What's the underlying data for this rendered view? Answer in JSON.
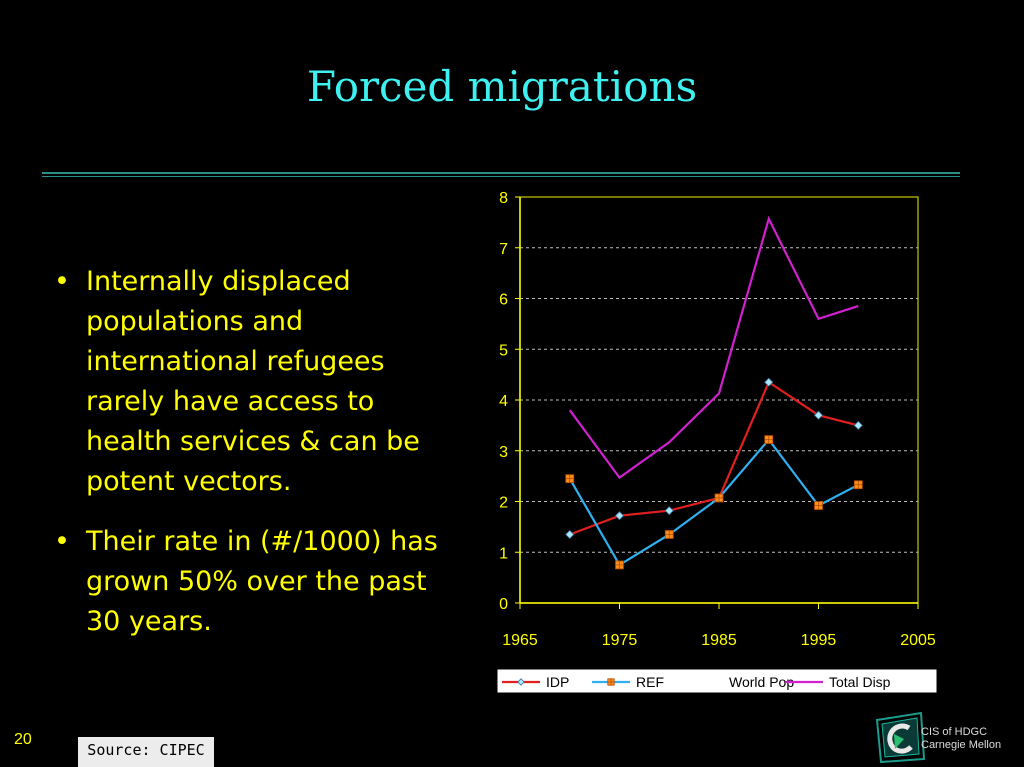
{
  "slide": {
    "title": "Forced migrations",
    "bullets": [
      "Internally displaced populations and international refugees rarely have access to health services & can be potent vectors.",
      "Their rate in (#/1000) has grown 50% over the past 30 years."
    ],
    "bullet_symbol": "•",
    "slide_number": "20",
    "source": "Source: CIPEC",
    "logo_lines": [
      "CIS of HDGC",
      "Carnegie Mellon"
    ]
  },
  "colors": {
    "background": "#000000",
    "title": "#3ff0f0",
    "body_text": "#ffff00",
    "rule": "#2a8f86",
    "chart_axis": "#ffff00",
    "plot_border": "#c8c800",
    "grid": "#bdbdbd"
  },
  "chart_data": {
    "type": "line",
    "title": "",
    "xlabel": "",
    "ylabel": "",
    "xlim": [
      1965,
      2005
    ],
    "ylim": [
      0,
      8
    ],
    "xticks": [
      1965,
      1975,
      1985,
      1995,
      2005
    ],
    "yticks": [
      0,
      1,
      2,
      3,
      4,
      5,
      6,
      7,
      8
    ],
    "grid": "horizontal dashed",
    "legend_position": "bottom",
    "series": [
      {
        "name": "IDP",
        "color": "#e02020",
        "marker": "diamond",
        "marker_fill": "#a8e8f8",
        "x": [
          1970,
          1975,
          1980,
          1985,
          1990,
          1995,
          1999
        ],
        "y": [
          1.35,
          1.72,
          1.82,
          2.07,
          4.35,
          3.7,
          3.5
        ]
      },
      {
        "name": "REF",
        "color": "#30b0f0",
        "marker": "square",
        "marker_fill": "#ff8c1a",
        "x": [
          1970,
          1975,
          1980,
          1985,
          1990,
          1995,
          1999
        ],
        "y": [
          2.45,
          0.75,
          1.35,
          2.07,
          3.22,
          1.92,
          2.33
        ]
      },
      {
        "name": "World Pop",
        "color": "#000000",
        "marker": "none",
        "x": [],
        "y": []
      },
      {
        "name": "Total Disp",
        "color": "#d020d0",
        "marker": "none",
        "x": [
          1970,
          1975,
          1980,
          1985,
          1990,
          1995,
          1999
        ],
        "y": [
          3.8,
          2.47,
          3.17,
          4.13,
          7.57,
          5.6,
          5.85
        ]
      }
    ]
  }
}
